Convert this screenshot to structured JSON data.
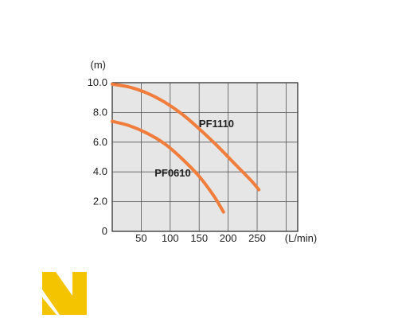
{
  "chart_data": {
    "type": "line",
    "title": "",
    "xlabel": "",
    "ylabel": "",
    "y_unit_label": "(m)",
    "x_unit_label": "(L/min)",
    "xlim": [
      0,
      320
    ],
    "ylim": [
      0,
      10
    ],
    "x_ticks": [
      50,
      100,
      150,
      200,
      250
    ],
    "x_tick_labels": [
      "50",
      "100",
      "150",
      "200",
      "250"
    ],
    "y_ticks": [
      0,
      2,
      4,
      6,
      8,
      10
    ],
    "y_tick_labels": [
      "0",
      "2.0",
      "4.0",
      "6.0",
      "8.0",
      "10.0"
    ],
    "grid": true,
    "plot_background": "#e6e6e6",
    "series": [
      {
        "name": "PF1110",
        "color": "#f07d3c",
        "x": [
          0,
          30,
          60,
          90,
          120,
          150,
          180,
          210,
          240,
          253
        ],
        "y": [
          9.9,
          9.7,
          9.3,
          8.7,
          7.9,
          6.9,
          5.8,
          4.6,
          3.4,
          2.8
        ]
      },
      {
        "name": "PF0610",
        "color": "#f07d3c",
        "x": [
          0,
          30,
          60,
          90,
          120,
          150,
          175,
          192
        ],
        "y": [
          7.4,
          7.1,
          6.6,
          5.9,
          4.9,
          3.7,
          2.4,
          1.3
        ]
      }
    ]
  },
  "logo": {
    "color": "#f5c400",
    "name": "brand-logo-icon"
  }
}
